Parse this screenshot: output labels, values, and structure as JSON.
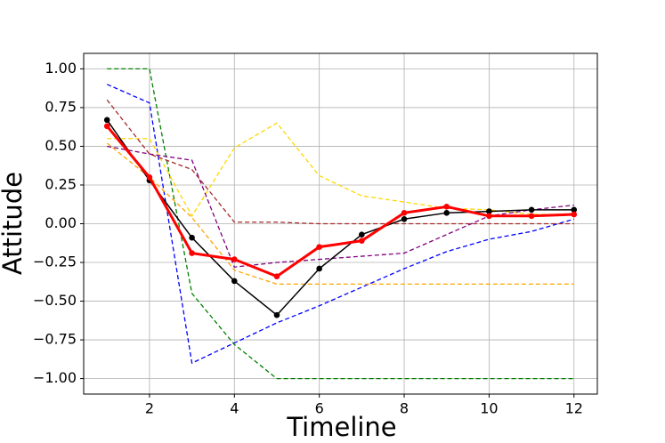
{
  "chart_data": {
    "type": "line",
    "x_label": "Timeline",
    "y_label": "Attitude",
    "x": [
      1,
      2,
      3,
      4,
      5,
      6,
      7,
      8,
      9,
      10,
      11,
      12
    ],
    "xlim": [
      0.45,
      12.55
    ],
    "ylim": [
      -1.1,
      1.1
    ],
    "xticks": [
      2,
      4,
      6,
      8,
      10,
      12
    ],
    "yticks": [
      {
        "value": 1,
        "label": "1.00"
      },
      {
        "value": 0.75,
        "label": "0.75"
      },
      {
        "value": 0.5,
        "label": "0.50"
      },
      {
        "value": 0.25,
        "label": "0.25"
      },
      {
        "value": 0,
        "label": "0.00"
      },
      {
        "value": -0.25,
        "label": "−0.25"
      },
      {
        "value": -0.5,
        "label": "−0.50"
      },
      {
        "value": -0.75,
        "label": "−0.75"
      },
      {
        "value": -1,
        "label": "−1.00"
      }
    ],
    "grid": true,
    "series": [
      {
        "color": "#008000",
        "dashed": true,
        "values": [
          1.0,
          1.0,
          -0.45,
          -0.78,
          -1.0,
          -1.0,
          -1.0,
          -1.0,
          -1.0,
          -1.0,
          -1.0,
          -1.0
        ]
      },
      {
        "color": "#0000ff",
        "dashed": true,
        "values": [
          0.9,
          0.78,
          -0.9,
          -0.77,
          -0.64,
          -0.53,
          -0.41,
          -0.29,
          -0.18,
          -0.1,
          -0.05,
          0.03
        ]
      },
      {
        "color": "#ffd700",
        "dashed": true,
        "values": [
          0.55,
          0.55,
          0.05,
          0.49,
          0.65,
          0.31,
          0.18,
          0.14,
          0.1,
          0.09,
          0.06,
          0.06
        ]
      },
      {
        "color": "#ffa500",
        "dashed": true,
        "values": [
          0.52,
          0.3,
          0.04,
          -0.3,
          -0.39,
          -0.39,
          -0.39,
          -0.39,
          -0.39,
          -0.39,
          -0.39,
          -0.39
        ]
      },
      {
        "color": "#800080",
        "dashed": true,
        "values": [
          0.5,
          0.45,
          0.41,
          -0.28,
          -0.25,
          -0.23,
          -0.21,
          -0.19,
          -0.07,
          0.05,
          0.09,
          0.12
        ]
      },
      {
        "color": "#a52a2a",
        "dashed": true,
        "values": [
          0.8,
          0.45,
          0.35,
          0.01,
          0.01,
          0.0,
          0.0,
          0.0,
          0.0,
          0.0,
          0.0,
          0.0
        ]
      },
      {
        "color": "#000000",
        "dashed": false,
        "width": 1.5,
        "markers": true,
        "values": [
          0.67,
          0.28,
          -0.09,
          -0.37,
          -0.59,
          -0.29,
          -0.07,
          0.03,
          0.07,
          0.08,
          0.09,
          0.09
        ]
      },
      {
        "color": "#ff0000",
        "dashed": false,
        "width": 3,
        "markers": true,
        "values": [
          0.63,
          0.3,
          -0.19,
          -0.23,
          -0.34,
          -0.15,
          -0.11,
          0.07,
          0.11,
          0.05,
          0.05,
          0.06
        ]
      }
    ]
  }
}
